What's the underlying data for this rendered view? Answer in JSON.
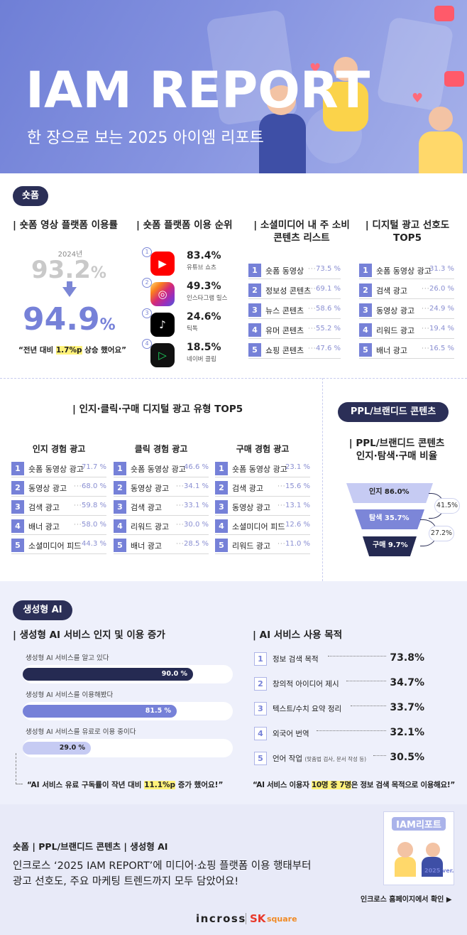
{
  "hero": {
    "title": "IAM REPORT",
    "subtitle": "한 장으로 보는 2025 아이엠 리포트"
  },
  "shorts": {
    "tag": "숏폼",
    "usage": {
      "title": "| 숏폼 영상 플랫폼 이용률",
      "prev_year_label": "2024년",
      "prev_value": "93.2",
      "curr_value": "94.9",
      "unit": "%",
      "note_pre": "“전년 대비 ",
      "note_hl": "1.7%p",
      "note_post": " 상승 했어요”"
    },
    "ranking": {
      "title": "| 숏폼 플랫폼 이용 순위",
      "items": [
        {
          "num": "1",
          "pct": "83.4%",
          "name": "유튜브 쇼츠",
          "color": "#ff0000",
          "icon": "youtube-icon"
        },
        {
          "num": "2",
          "pct": "49.3%",
          "name": "인스타그램 릴스",
          "color": "#d62976",
          "icon": "instagram-icon"
        },
        {
          "num": "3",
          "pct": "24.6%",
          "name": "틱톡",
          "color": "#000000",
          "icon": "tiktok-icon"
        },
        {
          "num": "4",
          "pct": "18.5%",
          "name": "네이버 클립",
          "color": "#111111",
          "icon": "naver-clip-icon"
        }
      ]
    },
    "social": {
      "title_line1": "| 소셜미디어 내 주 소비",
      "title_line2": "콘텐츠 리스트",
      "items": [
        {
          "num": "1",
          "label": "숏폼 동영상",
          "value": "73.5 %"
        },
        {
          "num": "2",
          "label": "정보성 콘텐츠",
          "value": "69.1 %"
        },
        {
          "num": "3",
          "label": "뉴스 콘텐츠",
          "value": "58.6 %"
        },
        {
          "num": "4",
          "label": "유머 콘텐츠",
          "value": "55.2 %"
        },
        {
          "num": "5",
          "label": "쇼핑 콘텐츠",
          "value": "47.6 %"
        }
      ]
    },
    "digital": {
      "title_line1": "| 디지털 광고 선호도",
      "title_line2": "TOP5",
      "items": [
        {
          "num": "1",
          "label": "숏폼 동영상 광고",
          "value": "31.3 %"
        },
        {
          "num": "2",
          "label": "검색 광고",
          "value": "26.0 %"
        },
        {
          "num": "3",
          "label": "동영상 광고",
          "value": "24.9 %"
        },
        {
          "num": "4",
          "label": "리워드 광고",
          "value": "19.4 %"
        },
        {
          "num": "5",
          "label": "배너 광고",
          "value": "16.5 %"
        }
      ]
    }
  },
  "ad_types": {
    "title": "|  인지·클릭·구매 디지털 광고 유형 TOP5",
    "groups": [
      {
        "name": "인지 경험 광고",
        "items": [
          {
            "num": "1",
            "label": "숏폼 동영상 광고",
            "value": "71.7 %"
          },
          {
            "num": "2",
            "label": "동영상 광고",
            "value": "68.0 %"
          },
          {
            "num": "3",
            "label": "검색 광고",
            "value": "59.8 %"
          },
          {
            "num": "4",
            "label": "배너 광고",
            "value": "58.0 %"
          },
          {
            "num": "5",
            "label": "소셜미디어 피드",
            "value": "44.3 %"
          }
        ]
      },
      {
        "name": "클릭 경험 광고",
        "items": [
          {
            "num": "1",
            "label": "숏폼 동영상 광고",
            "value": "46.6 %"
          },
          {
            "num": "2",
            "label": "동영상 광고",
            "value": "34.1 %"
          },
          {
            "num": "3",
            "label": "검색 광고",
            "value": "33.1 %"
          },
          {
            "num": "4",
            "label": "리워드 광고",
            "value": "30.0 %"
          },
          {
            "num": "5",
            "label": "배너 광고",
            "value": "28.5 %"
          }
        ]
      },
      {
        "name": "구매 경험 광고",
        "items": [
          {
            "num": "1",
            "label": "숏폼 동영상 광고",
            "value": "23.1 %"
          },
          {
            "num": "2",
            "label": "검색 광고",
            "value": "15.6 %"
          },
          {
            "num": "3",
            "label": "동영상 광고",
            "value": "13.1 %"
          },
          {
            "num": "4",
            "label": "소셜미디어 피드",
            "value": "12.6 %"
          },
          {
            "num": "5",
            "label": "리워드 광고",
            "value": "11.0 %"
          }
        ]
      }
    ]
  },
  "ppl": {
    "tag": "PPL/브랜디드 콘텐츠",
    "title_line1": "| PPL/브랜디드 콘텐츠",
    "title_line2": "인지·탐색·구매 비율",
    "funnel": [
      {
        "label": "인지 86.0%"
      },
      {
        "label": "탐색 35.7%"
      },
      {
        "label": "구매 9.7%"
      }
    ],
    "conv1": "41.5%",
    "conv2": "27.2%"
  },
  "ai": {
    "tag": "생성형 AI",
    "awareness": {
      "title": "| 생성형 AI 서비스 인지 및 이용 증가",
      "bars": [
        {
          "label": "생성형 AI 서비스를 알고 있다",
          "value": 90.0,
          "value_text": "90.0 %",
          "color": "#252a52"
        },
        {
          "label": "생성형 AI 서비스를 이용해봤다",
          "value": 81.5,
          "value_text": "81.5 %",
          "color": "#7681d8"
        },
        {
          "label": "생성형 AI 서비스를 유료로 이용 중이다",
          "value": 29.0,
          "value_text": "29.0 %",
          "color": "#c6cbf3"
        }
      ],
      "note_pre": "“AI 서비스 유료 구독률이 작년 대비 ",
      "note_hl": "11.1%p",
      "note_post": " 증가 했어요!”"
    },
    "purpose": {
      "title": "| AI 서비스 사용 목적",
      "items": [
        {
          "num": "1",
          "label": "정보 검색 목적",
          "extra": "",
          "value": "73.8%"
        },
        {
          "num": "2",
          "label": "창의적 아이디어 제시",
          "extra": "",
          "value": "34.7%"
        },
        {
          "num": "3",
          "label": "텍스트/수치 요약 정리",
          "extra": "",
          "value": "33.7%"
        },
        {
          "num": "4",
          "label": "외국어 번역",
          "extra": "",
          "value": "32.1%"
        },
        {
          "num": "5",
          "label": "언어 작업 ",
          "extra": "(맞춤법 검사, 문서 작성 등)",
          "value": "30.5%"
        }
      ],
      "note_pre": "“AI 서비스 이용자 ",
      "note_hl": "10명 중 7명",
      "note_post": "은 정보 검색 목적으로 이용해요!”"
    }
  },
  "footer": {
    "categories": "숏폼 | PPL/브랜디드 콘텐츠 | 생성형 AI",
    "desc_line1": "인크로스 ‘2025 IAM REPORT’에 미디어·쇼핑 플랫폼 이용 행태부터",
    "desc_line2": "광고 선호도, 주요 마케팅 트렌드까지 모두 담았어요!",
    "card_title": "IAM리포트",
    "card_ver": "2025 ver.",
    "link": "인크로스 홈페이지에서 확인 ▶",
    "brand": "incross",
    "brand_sk": "SK",
    "brand_sq": "square"
  }
}
